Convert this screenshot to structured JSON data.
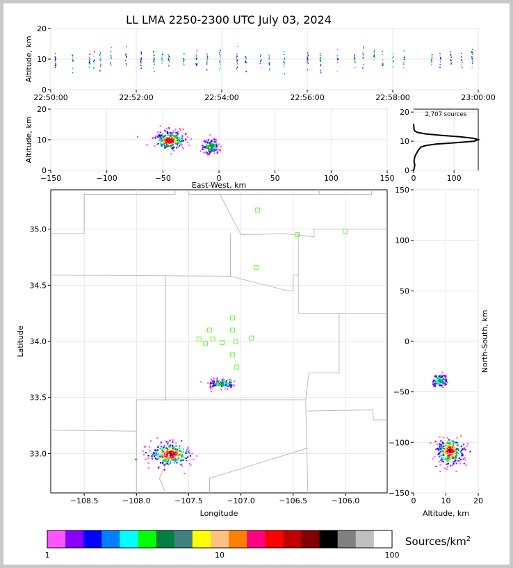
{
  "title": "LL LMA 2250-2300 UTC July 03, 2024",
  "source_count_label": "2,707 sources",
  "colorbar_label": "Sources/km",
  "colorbar_label_sup": "2",
  "colors": {
    "map_border": "#bbbbbb",
    "station": "#66ff33",
    "frame_outer": "#c8c8c8"
  },
  "colorbar": {
    "colors": [
      "#ff55ff",
      "#8800ff",
      "#0000ff",
      "#0080ff",
      "#00ffff",
      "#00ff00",
      "#008040",
      "#408080",
      "#ffff00",
      "#ffc080",
      "#ff8000",
      "#ff0080",
      "#ff0000",
      "#c00000",
      "#800000",
      "#000000",
      "#808080",
      "#c0c0c0",
      "#ffffff"
    ],
    "tick_labels": [
      "1",
      "10",
      "100"
    ]
  },
  "chart_data": [
    {
      "id": "time-height",
      "type": "scatter",
      "xlabel": "",
      "ylabel": "Altitude, km",
      "xlim": [
        "22:50:00",
        "23:00:00"
      ],
      "ylim": [
        0,
        20
      ],
      "xticks": [
        "22:50:00",
        "22:52:00",
        "22:54:00",
        "22:56:00",
        "22:58:00",
        "23:00:00"
      ],
      "yticks": [
        "0",
        "10",
        "20"
      ],
      "grid": true,
      "columns_minutes": [
        0.1,
        0.5,
        0.9,
        1.0,
        1.15,
        1.4,
        1.75,
        2.1,
        2.4,
        2.6,
        2.75,
        3.1,
        3.4,
        3.65,
        3.95,
        4.35,
        4.55,
        4.9,
        5.1,
        5.45,
        6.0,
        6.3,
        6.7,
        7.1,
        7.3,
        7.55,
        7.75,
        8.0,
        8.25,
        8.9,
        9.1,
        9.35,
        9.6,
        9.85
      ]
    },
    {
      "id": "east-west-altitude",
      "type": "heatmap",
      "xlabel": "East-West, km",
      "ylabel": "Altitude, km",
      "xlim": [
        -150,
        150
      ],
      "ylim": [
        0,
        20
      ],
      "xticks": [
        "−150",
        "−100",
        "−50",
        "0",
        "50",
        "100",
        "150"
      ],
      "yticks": [
        "0",
        "10",
        "20"
      ],
      "grid": true,
      "clusters": [
        {
          "x": -45,
          "z": 10,
          "sx": 7,
          "sz": 1.4
        },
        {
          "x": -8,
          "z": 8,
          "sx": 4,
          "sz": 1.2
        }
      ]
    },
    {
      "id": "altitude-histogram",
      "type": "line",
      "xlabel": "",
      "ylabel": "",
      "xlim": [
        0,
        160
      ],
      "ylim": [
        0,
        21
      ],
      "xticks": [
        "0",
        "100"
      ],
      "yticks": [
        "0",
        "10",
        "20"
      ],
      "x": [
        0,
        2,
        3,
        1,
        2,
        4,
        8,
        12,
        18,
        30,
        55,
        105,
        150,
        160,
        148,
        115,
        70,
        30,
        10,
        3,
        1,
        0
      ],
      "y": [
        0,
        1,
        2,
        3,
        4,
        5,
        6,
        7,
        8,
        8.5,
        9,
        9.5,
        10,
        10.5,
        11,
        11.5,
        12,
        12.5,
        13,
        13.5,
        14,
        16
      ]
    },
    {
      "id": "plan-view",
      "type": "heatmap",
      "xlabel": "Longitude",
      "ylabel": "Latitude",
      "xlim": [
        -108.82,
        -105.6
      ],
      "ylim": [
        32.65,
        35.35
      ],
      "xticks": [
        "−108.5",
        "−108.0",
        "−107.5",
        "−107.0",
        "−106.5",
        "−106.0"
      ],
      "yticks": [
        "33.0",
        "33.5",
        "34.0",
        "34.5",
        "35.0"
      ],
      "grid": true,
      "clusters": [
        {
          "lon": -107.2,
          "lat": 33.63,
          "slon": 0.06,
          "slat": 0.02
        },
        {
          "lon": -107.68,
          "lat": 33.0,
          "slon": 0.1,
          "slat": 0.05
        }
      ],
      "stations": [
        {
          "lon": -106.84,
          "lat": 35.17
        },
        {
          "lon": -106.46,
          "lat": 34.95
        },
        {
          "lon": -106.0,
          "lat": 34.98
        },
        {
          "lon": -106.85,
          "lat": 34.66
        },
        {
          "lon": -107.08,
          "lat": 34.21
        },
        {
          "lon": -107.3,
          "lat": 34.1
        },
        {
          "lon": -107.08,
          "lat": 34.1
        },
        {
          "lon": -107.4,
          "lat": 34.02
        },
        {
          "lon": -107.27,
          "lat": 34.02
        },
        {
          "lon": -106.9,
          "lat": 34.03
        },
        {
          "lon": -107.34,
          "lat": 33.98
        },
        {
          "lon": -107.18,
          "lat": 33.99
        },
        {
          "lon": -107.05,
          "lat": 34.0
        },
        {
          "lon": -107.08,
          "lat": 33.88
        },
        {
          "lon": -107.04,
          "lat": 33.77
        },
        {
          "lon": -107.11,
          "lat": 33.64
        }
      ]
    },
    {
      "id": "altitude-north-south",
      "type": "heatmap",
      "xlabel": "Altitude, km",
      "ylabel": "North-South, km",
      "xlim": [
        0,
        20
      ],
      "ylim": [
        -150,
        150
      ],
      "xticks": [
        "0",
        "10",
        "20"
      ],
      "yticks": [
        "−150",
        "−100",
        "−50",
        "0",
        "50",
        "100",
        "150"
      ],
      "grid": true,
      "clusters": [
        {
          "z": 8,
          "y": -38,
          "sz": 1.2,
          "sy": 3
        },
        {
          "z": 11,
          "y": -108,
          "sz": 2,
          "sy": 7
        }
      ]
    }
  ]
}
